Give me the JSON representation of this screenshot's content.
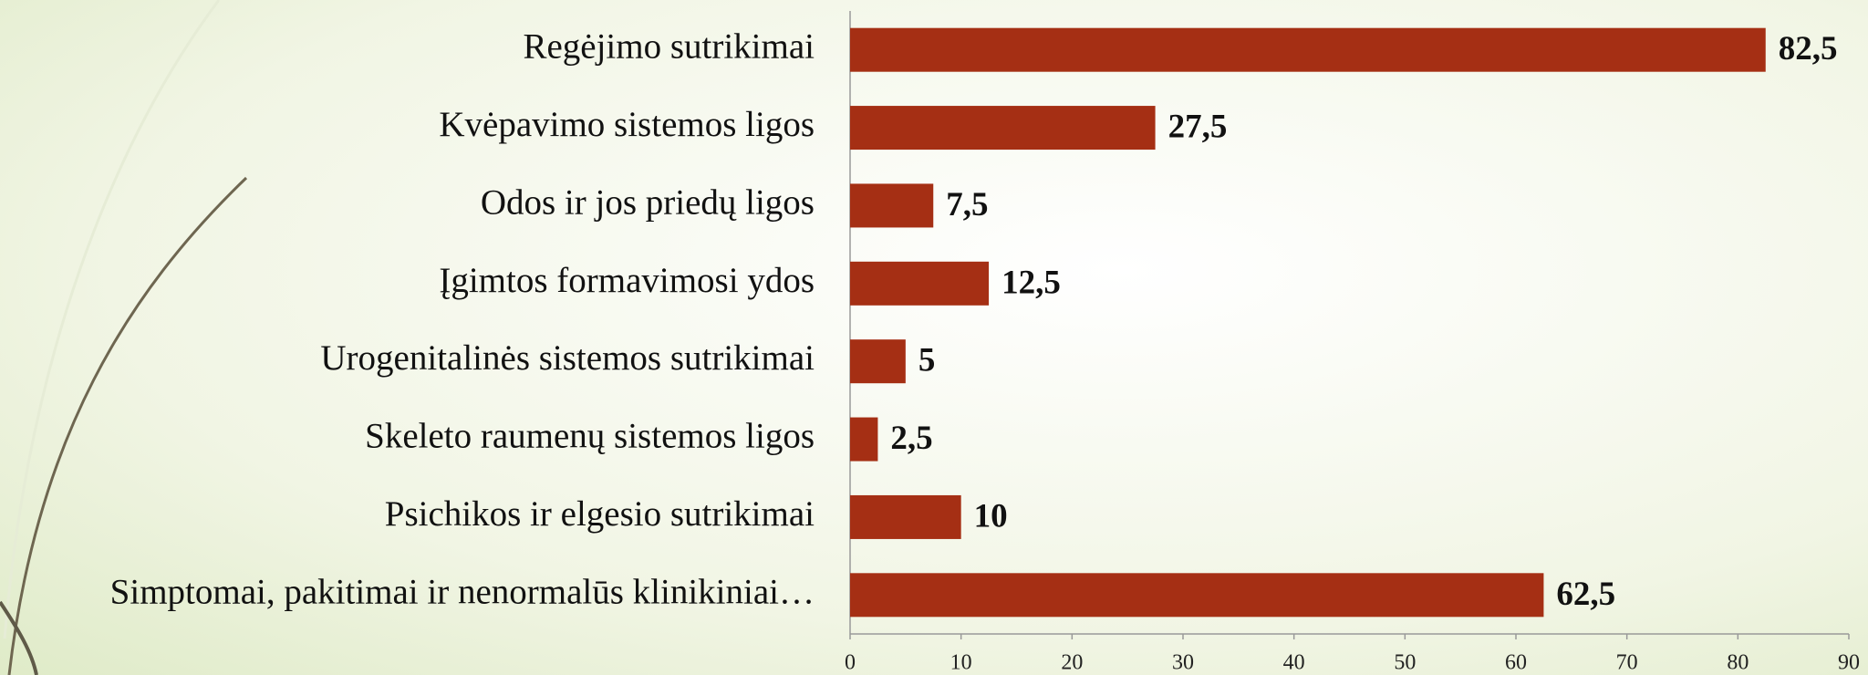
{
  "chart_data": {
    "type": "bar",
    "orientation": "horizontal",
    "categories": [
      "Regėjimo sutrikimai",
      "Kvėpavimo sistemos ligos",
      "Odos ir jos priedų ligos",
      "Įgimtos formavimosi ydos",
      "Urogenitalinės sistemos sutrikimai",
      "Skeleto raumenų sistemos ligos",
      "Psichikos ir elgesio sutrikimai",
      "Simptomai, pakitimai ir nenormalūs klinikiniai…"
    ],
    "values": [
      82.5,
      27.5,
      7.5,
      12.5,
      5,
      2.5,
      10,
      62.5
    ],
    "value_labels": [
      "82,5",
      "27,5",
      "7,5",
      "12,5",
      "5",
      "2,5",
      "10",
      "62,5"
    ],
    "color": "#a52f14",
    "xlim": [
      0,
      90
    ],
    "xticks": [
      0,
      10,
      20,
      30,
      40,
      50,
      60,
      70,
      80,
      90
    ]
  }
}
